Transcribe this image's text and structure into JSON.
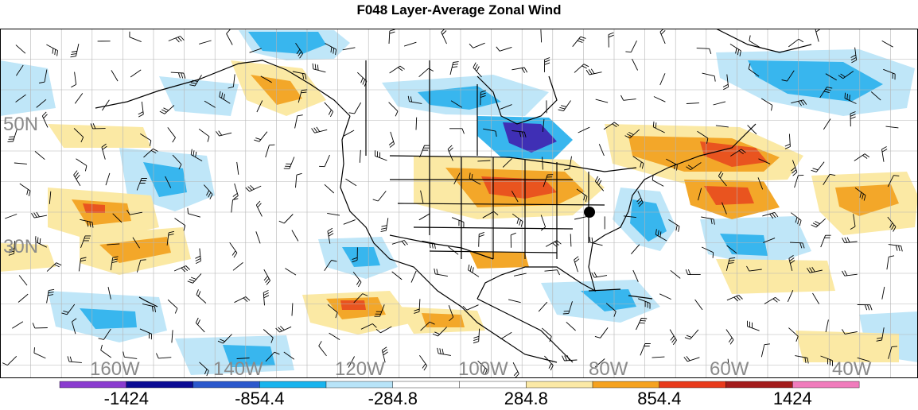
{
  "title": "F048 Layer-Average Zonal Wind",
  "map": {
    "lat_labels": [
      "50N",
      "30N"
    ],
    "lon_labels": [
      "160W",
      "140W",
      "120W",
      "100W",
      "80W",
      "60W",
      "40W"
    ],
    "colors": {
      "water": "#ffffff",
      "grid": "#b5b5b5",
      "boundary": "#000000",
      "marker": "#000000"
    }
  },
  "colorbar": {
    "colors": [
      "#8a3ccf",
      "#0c0c94",
      "#2b58cc",
      "#19b4ee",
      "#b8e4f8",
      "#ffffff",
      "#ffffff",
      "#fbe9a6",
      "#f5a21f",
      "#e83a1c",
      "#a31c1c",
      "#f07cbc"
    ],
    "labels": [
      "-1424",
      "-854.4",
      "-284.8",
      "284.8",
      "854.4",
      "1424"
    ]
  },
  "field_colors": {
    "neg_light": "#bfe6f8",
    "neg_mid": "#38b6ee",
    "neg_dark": "#2f5fcc",
    "neg_deep": "#3f2fb5",
    "pos_light": "#fbe9a4",
    "pos_mid": "#f3a729",
    "pos_dark": "#e9541f",
    "pos_deep": "#c22b1a"
  }
}
